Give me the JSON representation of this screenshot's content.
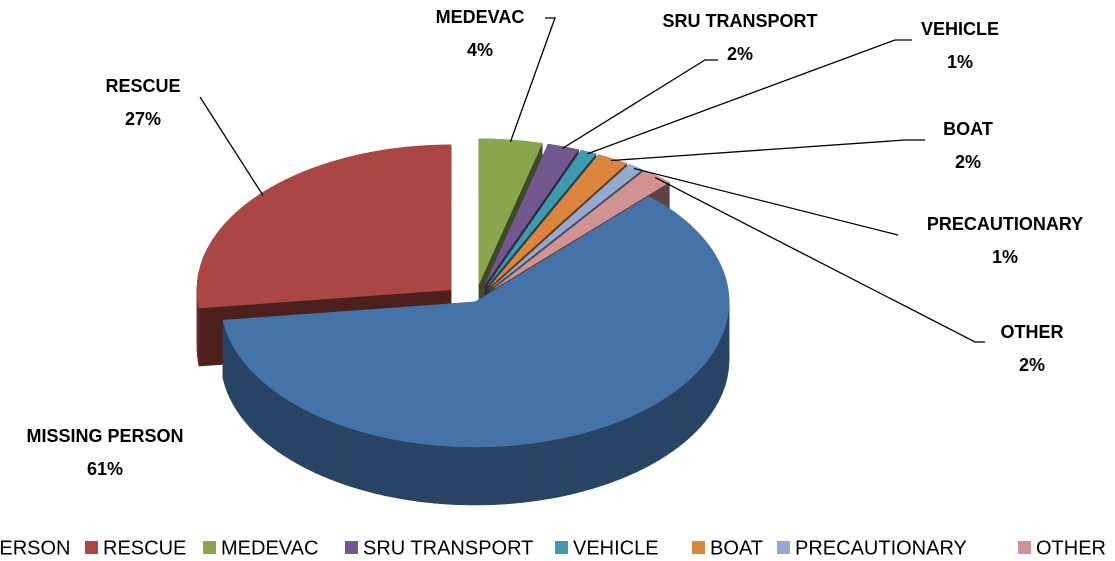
{
  "chart_data": {
    "type": "pie3d",
    "categories": [
      "MISSING PERSON",
      "RESCUE",
      "MEDEVAC",
      "SRU TRANSPORT",
      "VEHICLE",
      "BOAT",
      "PRECAUTIONARY",
      "OTHER"
    ],
    "values": [
      61,
      27,
      4,
      2,
      1,
      2,
      1,
      2
    ],
    "value_labels": [
      "61%",
      "27%",
      "4%",
      "2%",
      "1%",
      "2%",
      "1%",
      "2%"
    ],
    "colors": [
      "#4572a7",
      "#aa4643",
      "#89a54e",
      "#71588f",
      "#4198af",
      "#db843d",
      "#93a9cf",
      "#d19392"
    ],
    "legend": "bottom"
  }
}
